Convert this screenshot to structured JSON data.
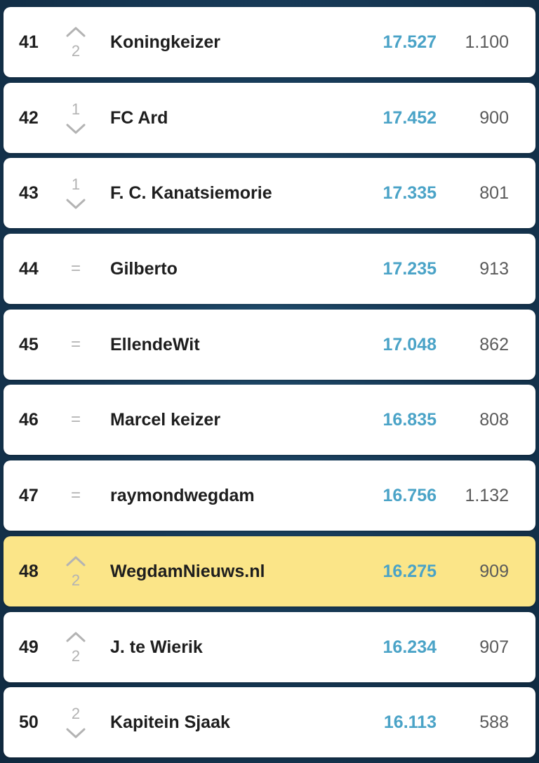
{
  "colors": {
    "background": "#173a57",
    "row": "#ffffff",
    "highlight_row": "#fbe588",
    "points": "#4aa3c7",
    "trend": "#b3b3b3"
  },
  "rows": [
    {
      "rank": "41",
      "trend": "up",
      "trend_icon": "chevron-up-icon",
      "change": "2",
      "name": "Koningkeizer",
      "points": "17.527",
      "count": "1.100",
      "highlight": false
    },
    {
      "rank": "42",
      "trend": "down",
      "trend_icon": "chevron-down-icon",
      "change": "1",
      "name": "FC Ard",
      "points": "17.452",
      "count": "900",
      "highlight": false
    },
    {
      "rank": "43",
      "trend": "down",
      "trend_icon": "chevron-down-icon",
      "change": "1",
      "name": "F. C. Kanatsiemorie",
      "points": "17.335",
      "count": "801",
      "highlight": false
    },
    {
      "rank": "44",
      "trend": "same",
      "trend_icon": "equals-icon",
      "change": "=",
      "name": "Gilberto",
      "points": "17.235",
      "count": "913",
      "highlight": false
    },
    {
      "rank": "45",
      "trend": "same",
      "trend_icon": "equals-icon",
      "change": "=",
      "name": "EllendeWit",
      "points": "17.048",
      "count": "862",
      "highlight": false
    },
    {
      "rank": "46",
      "trend": "same",
      "trend_icon": "equals-icon",
      "change": "=",
      "name": "Marcel keizer",
      "points": "16.835",
      "count": "808",
      "highlight": false
    },
    {
      "rank": "47",
      "trend": "same",
      "trend_icon": "equals-icon",
      "change": "=",
      "name": "raymondwegdam",
      "points": "16.756",
      "count": "1.132",
      "highlight": false
    },
    {
      "rank": "48",
      "trend": "up",
      "trend_icon": "chevron-up-icon",
      "change": "2",
      "name": "WegdamNieuws.nl",
      "points": "16.275",
      "count": "909",
      "highlight": true
    },
    {
      "rank": "49",
      "trend": "up",
      "trend_icon": "chevron-up-icon",
      "change": "2",
      "name": "J. te Wierik",
      "points": "16.234",
      "count": "907",
      "highlight": false
    },
    {
      "rank": "50",
      "trend": "down",
      "trend_icon": "chevron-down-icon",
      "change": "2",
      "name": "Kapitein Sjaak",
      "points": "16.113",
      "count": "588",
      "highlight": false
    }
  ]
}
